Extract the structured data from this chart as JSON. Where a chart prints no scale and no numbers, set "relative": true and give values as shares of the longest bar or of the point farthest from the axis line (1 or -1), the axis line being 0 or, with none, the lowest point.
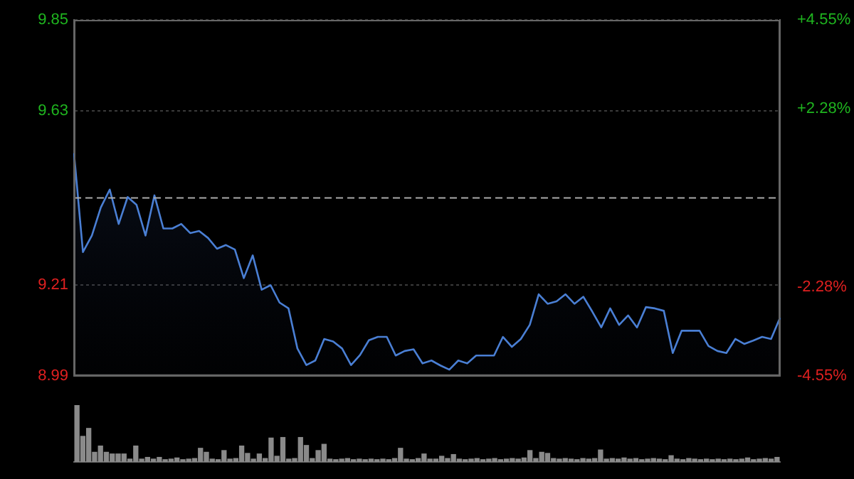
{
  "chart_data": [
    {
      "type": "area",
      "categories": [
        null,
        null,
        null,
        null,
        null,
        null,
        null,
        null,
        null,
        null,
        null,
        null,
        null,
        null,
        null,
        null,
        null,
        null,
        null,
        null,
        null,
        null,
        null,
        null,
        null,
        null,
        null,
        null,
        null,
        null,
        null,
        null,
        null,
        null,
        null,
        null,
        null,
        null,
        null,
        null,
        null,
        null,
        null,
        null,
        null,
        null,
        null,
        null,
        null,
        null,
        null,
        null,
        null,
        null,
        null,
        null,
        null,
        null,
        null,
        null,
        null,
        null,
        null,
        null,
        null,
        null,
        null,
        null,
        null,
        null,
        null,
        null,
        null,
        null,
        null,
        null,
        null,
        null,
        null,
        null
      ],
      "values": [
        9.528,
        9.289,
        9.329,
        9.397,
        9.44,
        9.357,
        9.422,
        9.403,
        9.329,
        9.426,
        9.346,
        9.346,
        9.357,
        9.335,
        9.34,
        9.323,
        9.297,
        9.306,
        9.295,
        9.226,
        9.281,
        9.198,
        9.209,
        9.167,
        9.153,
        9.056,
        9.016,
        9.027,
        9.079,
        9.073,
        9.056,
        9.016,
        9.04,
        9.076,
        9.084,
        9.084,
        9.039,
        9.05,
        9.054,
        9.02,
        9.027,
        9.015,
        9.005,
        9.027,
        9.02,
        9.039,
        9.039,
        9.039,
        9.084,
        9.06,
        9.079,
        9.113,
        9.187,
        9.164,
        9.17,
        9.187,
        9.164,
        9.181,
        9.145,
        9.107,
        9.153,
        9.113,
        9.136,
        9.107,
        9.156,
        9.153,
        9.147,
        9.045,
        9.099,
        9.099,
        9.099,
        9.062,
        9.05,
        9.045,
        9.079,
        9.067,
        9.075,
        9.084,
        9.079,
        9.13
      ],
      "color": "#4a7fd4",
      "ylim": [
        8.99,
        9.85
      ],
      "yticks": [
        8.99,
        9.21,
        9.63,
        9.85
      ],
      "y2lim": [
        -4.55,
        4.55
      ],
      "y2ticks": [
        {
          "value": -4.55,
          "label": "-4.55%"
        },
        {
          "value": -2.28,
          "label": "-2.28%"
        },
        {
          "value": 2.28,
          "label": "+2.28%"
        },
        {
          "value": 4.55,
          "label": "+4.55%"
        }
      ],
      "ref_lines": [
        {
          "axis": "y",
          "value": 9.42,
          "color": "#aaaaaa",
          "line_style": "dashed"
        }
      ],
      "grid": "y",
      "legend": false
    },
    {
      "type": "bar",
      "relative": true,
      "color": "#8a8a8a",
      "grid": false,
      "legend": false,
      "categories": [
        null,
        null,
        null,
        null,
        null,
        null,
        null,
        null,
        null,
        null,
        null,
        null,
        null,
        null,
        null,
        null,
        null,
        null,
        null,
        null,
        null,
        null,
        null,
        null,
        null,
        null,
        null,
        null,
        null,
        null,
        null,
        null,
        null,
        null,
        null,
        null,
        null,
        null,
        null,
        null,
        null,
        null,
        null,
        null,
        null,
        null,
        null,
        null,
        null,
        null,
        null,
        null,
        null,
        null,
        null,
        null,
        null,
        null,
        null,
        null,
        null,
        null,
        null,
        null,
        null,
        null,
        null,
        null,
        null,
        null,
        null,
        null,
        null,
        null,
        null,
        null,
        null,
        null,
        null,
        null,
        null,
        null,
        null,
        null,
        null,
        null,
        null,
        null,
        null,
        null,
        null,
        null,
        null,
        null,
        null,
        null,
        null,
        null,
        null,
        null,
        null,
        null,
        null,
        null,
        null,
        null,
        null,
        null,
        null,
        null,
        null,
        null,
        null,
        null,
        null,
        null,
        null,
        null,
        null,
        null
      ],
      "values": [
        1.0,
        0.45,
        0.59,
        0.17,
        0.28,
        0.17,
        0.14,
        0.14,
        0.14,
        0.05,
        0.28,
        0.05,
        0.08,
        0.05,
        0.08,
        0.04,
        0.05,
        0.07,
        0.04,
        0.05,
        0.06,
        0.24,
        0.17,
        0.05,
        0.04,
        0.2,
        0.05,
        0.06,
        0.28,
        0.15,
        0.05,
        0.14,
        0.06,
        0.42,
        0.1,
        0.43,
        0.05,
        0.06,
        0.43,
        0.29,
        0.06,
        0.2,
        0.31,
        0.05,
        0.04,
        0.05,
        0.06,
        0.04,
        0.05,
        0.04,
        0.05,
        0.04,
        0.05,
        0.04,
        0.06,
        0.24,
        0.05,
        0.04,
        0.06,
        0.14,
        0.05,
        0.05,
        0.1,
        0.06,
        0.13,
        0.05,
        0.04,
        0.05,
        0.06,
        0.04,
        0.05,
        0.06,
        0.04,
        0.05,
        0.06,
        0.05,
        0.07,
        0.2,
        0.06,
        0.17,
        0.15,
        0.06,
        0.05,
        0.06,
        0.05,
        0.04,
        0.06,
        0.05,
        0.06,
        0.21,
        0.05,
        0.06,
        0.05,
        0.07,
        0.05,
        0.06,
        0.04,
        0.05,
        0.06,
        0.05,
        0.04,
        0.11,
        0.05,
        0.04,
        0.06,
        0.05,
        0.04,
        0.05,
        0.04,
        0.05,
        0.04,
        0.05,
        0.04,
        0.05,
        0.07,
        0.04,
        0.05,
        0.06,
        0.05,
        0.08
      ]
    }
  ]
}
